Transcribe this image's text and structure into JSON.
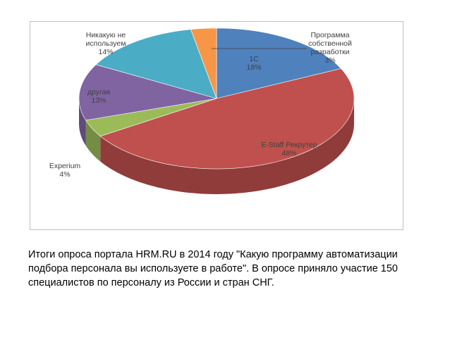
{
  "chart_data": {
    "type": "pie3d",
    "categories": [
      "1С",
      "E-Staff Рекрутер",
      "Experium",
      "другая",
      "Никакую не используем",
      "Программа собственной разработки"
    ],
    "values": [
      18,
      48,
      4,
      13,
      14,
      3
    ],
    "value_labels": [
      "18%",
      "48%",
      "4%",
      "13%",
      "14%",
      "3%"
    ],
    "colors": [
      "#4f81bd",
      "#c0504d",
      "#9bbb59",
      "#8064a2",
      "#4bacc6",
      "#f79646"
    ]
  },
  "caption": "Итоги опроса портала HRM.RU в 2014 году \"Какую программу автоматизации подбора персонала вы используете в работе\". В опросе приняло участие 150 специалистов по персоналу из России и стран СНГ."
}
